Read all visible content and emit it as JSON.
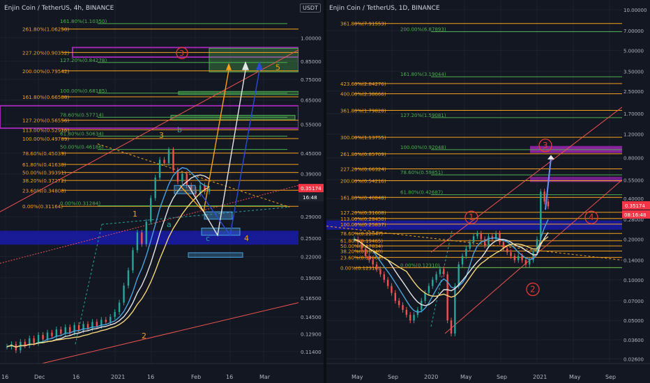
{
  "left": {
    "title": "Enjin Coin / TetherUS, 4h, BINANCE",
    "currency_label": "USDT",
    "price_tag": "0.35174",
    "countdown_tag": "16:48",
    "price_ticks": [
      "1.00000",
      "0.85000",
      "0.75000",
      "0.65000",
      "0.55000",
      "0.45000",
      "0.39000",
      "0.29000",
      "0.25000",
      "0.22000",
      "0.19000",
      "0.16500",
      "0.14500",
      "0.12900",
      "0.11400"
    ],
    "time_ticks": [
      "16",
      "Dec",
      "16",
      "2021",
      "16",
      "Feb",
      "16",
      "Mar"
    ],
    "fib_orange": [
      {
        "label": "261.80%(1.06250)",
        "val": 1.0625
      },
      {
        "label": "227.20%(0.90352)",
        "val": 0.90352
      },
      {
        "label": "200.00%(0.79542)",
        "val": 0.79542
      },
      {
        "label": "161.80%(0.66508)",
        "val": 0.66508
      },
      {
        "label": "127.20%(0.56556)",
        "val": 0.56556
      },
      {
        "label": "113.00%(0.52916)",
        "val": 0.52916
      },
      {
        "label": "100.00%(0.49789)",
        "val": 0.49789
      },
      {
        "label": "78.60%(0.45039)",
        "val": 0.45039
      },
      {
        "label": "61.80%(0.41630)",
        "val": 0.4163
      },
      {
        "label": "50.00%(0.39391)",
        "val": 0.39391
      },
      {
        "label": "38.20%(0.37272)",
        "val": 0.37272
      },
      {
        "label": "23.60%(0.34808)",
        "val": 0.34808
      },
      {
        "label": "0.00%(0.31164)",
        "val": 0.31164
      }
    ],
    "fib_green": [
      {
        "label": "161.80%(1.10350)",
        "val": 1.1035
      },
      {
        "label": "127.20%(0.84278)",
        "val": 0.84278
      },
      {
        "label": "100.00%(0.68185)",
        "val": 0.68185
      },
      {
        "label": "78.60%(0.57714)",
        "val": 0.57714
      },
      {
        "label": "61.80%(0.50634)",
        "val": 0.50634
      },
      {
        "label": "50.00%(0.46186)",
        "val": 0.46186
      },
      {
        "label": "0.00%(0.31284)",
        "val": 0.31284
      }
    ],
    "wave_labels": {
      "w1": "1",
      "w2": "2",
      "w3": "3",
      "w4": "4",
      "w5": "5",
      "wa": "a",
      "wb": "b",
      "wc": "c",
      "circle3": "3"
    }
  },
  "right": {
    "title": "Enjin Coin / TetherUS, 1D, BINANCE",
    "price_tag": "0.35174",
    "countdown_tag": "08:16:48",
    "price_ticks": [
      "10.00000",
      "7.00000",
      "5.00000",
      "3.50000",
      "2.50000",
      "1.70000",
      "1.20000",
      "0.80000",
      "0.55000",
      "0.40000",
      "0.28000",
      "0.20000",
      "0.14000",
      "0.10000",
      "0.07000",
      "0.05000",
      "0.03600",
      "0.02600"
    ],
    "time_ticks": [
      "May",
      "Sep",
      "2020",
      "May",
      "Sep",
      "2021",
      "May",
      "Sep"
    ],
    "fib_orange": [
      {
        "label": "361.80%(7.91553)",
        "val": 7.91553
      },
      {
        "label": "423.60%(2.84276)",
        "val": 2.84276
      },
      {
        "label": "400.00%(2.38666)",
        "val": 2.38666
      },
      {
        "label": "361.80%(1.79828)",
        "val": 1.79828
      },
      {
        "label": "300.00%(1.13755)",
        "val": 1.13755
      },
      {
        "label": "261.80%(0.85709)",
        "val": 0.85709
      },
      {
        "label": "227.20%(0.66324)",
        "val": 0.66324
      },
      {
        "label": "200.00%(0.54216)",
        "val": 0.54216
      },
      {
        "label": "161.80%(0.40848)",
        "val": 0.40848
      },
      {
        "label": "127.20%(0.31608)",
        "val": 0.31608
      },
      {
        "label": "113.00%(0.28450)",
        "val": 0.2845
      },
      {
        "label": "100.00%(0.25837)",
        "val": 0.25837
      },
      {
        "label": "78.60%(0.22047)",
        "val": 0.22047
      },
      {
        "label": "61.80%(0.19465)",
        "val": 0.19465
      },
      {
        "label": "50.00%(0.17834)",
        "val": 0.17834
      },
      {
        "label": "38.20%(0.16340)",
        "val": 0.1634
      },
      {
        "label": "23.60%(0.14664)",
        "val": 0.14664
      },
      {
        "label": "0.00%(0.12310)",
        "val": 0.1231
      }
    ],
    "fib_green": [
      {
        "label": "200.00%(6.87893)",
        "val": 6.87893
      },
      {
        "label": "161.80%(3.19044)",
        "val": 3.19044
      },
      {
        "label": "127.20%(1.59081)",
        "val": 1.59081
      },
      {
        "label": "100.00%(0.92048)",
        "val": 0.92048
      },
      {
        "label": "78.60%(0.59851)",
        "val": 0.59851
      },
      {
        "label": "61.80%(0.42687)",
        "val": 0.42687
      },
      {
        "label": "0.00%(0.12310)",
        "val": 0.1231
      }
    ],
    "wave_labels": {
      "c1": "1",
      "c2": "2",
      "c3": "3",
      "c4": "4"
    }
  },
  "colors": {
    "bg": "#131722",
    "grid": "#1e222d",
    "up": "#26a69a",
    "down": "#ef5350",
    "fib_orange": "#f6a21e",
    "fib_green": "#4caf50",
    "magenta": "#9c27b0",
    "blue_zone": "#1a1aa8",
    "ma_white": "#e6e6e6",
    "ma_blue": "#4aa3df",
    "ma_yellow": "#f5d77a",
    "price_tag": "#f23645",
    "wave_red": "#e53935"
  },
  "chart_data": [
    {
      "type": "line",
      "title": "Enjin Coin / TetherUS, 4h, BINANCE",
      "scale": "log",
      "ylim": [
        0.105,
        1.25
      ],
      "x_ticks": [
        "16",
        "Dec",
        "16",
        "2021",
        "16",
        "Feb",
        "16",
        "Mar"
      ],
      "series": [
        {
          "name": "",
          "values": [
            0.115,
            0.12,
            0.118,
            0.125,
            0.13,
            0.135,
            0.14,
            0.15,
            0.17,
            0.2,
            0.25,
            0.3,
            0.4,
            0.45,
            0.38,
            0.36,
            0.34,
            0.33,
            0.35
          ]
        }
      ],
      "last_price": 0.35174
    },
    {
      "type": "line",
      "title": "Enjin Coin / TetherUS, 1D, BINANCE",
      "scale": "log",
      "ylim": [
        0.024,
        11
      ],
      "x_ticks": [
        "May",
        "Sep",
        "2020",
        "May",
        "Sep",
        "2021",
        "May",
        "Sep"
      ],
      "series": [
        {
          "name": "",
          "values": [
            0.2,
            0.14,
            0.11,
            0.08,
            0.06,
            0.05,
            0.07,
            0.1,
            0.12,
            0.04,
            0.13,
            0.18,
            0.22,
            0.17,
            0.2,
            0.15,
            0.14,
            0.3,
            0.35
          ]
        }
      ],
      "last_price": 0.35174
    }
  ]
}
